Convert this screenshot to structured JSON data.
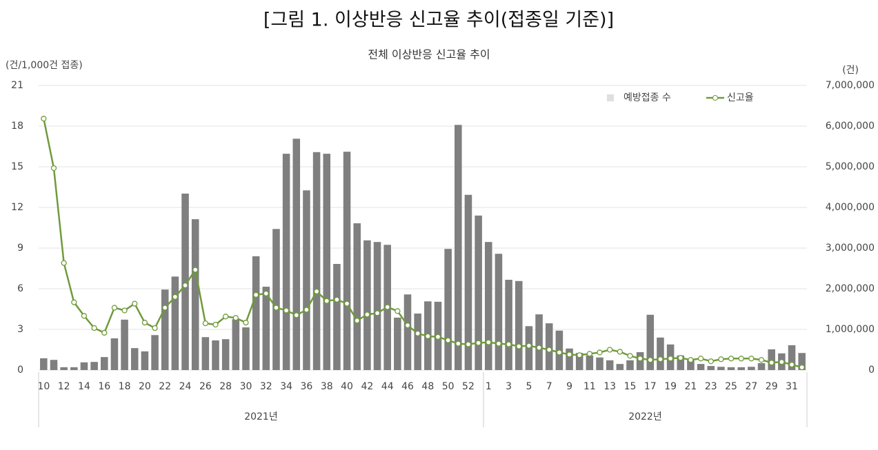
{
  "chart_data": {
    "type": "bar_line",
    "title": "[그림 1. 이상반응 신고율 추이(접종일 기준)]",
    "subtitle": "전체 이상반응 신고율 추이",
    "y_label": "(건/1,000건 접종)",
    "y2_label": "(건)",
    "categories": [
      "10",
      null,
      "12",
      null,
      "14",
      null,
      "16",
      null,
      "18",
      null,
      "20",
      null,
      "22",
      null,
      "24",
      null,
      "26",
      null,
      "28",
      null,
      "30",
      null,
      "32",
      null,
      "34",
      null,
      "36",
      null,
      "38",
      null,
      "40",
      null,
      "42",
      null,
      "44",
      null,
      "46",
      null,
      "48",
      null,
      "50",
      null,
      "52",
      null,
      "1",
      null,
      "3",
      null,
      "5",
      null,
      "7",
      null,
      "9",
      null,
      "11",
      null,
      "13",
      null,
      "15",
      null,
      "17",
      null,
      "19",
      null,
      "21",
      null,
      "23",
      null,
      "25",
      null,
      "27",
      null,
      "29",
      null,
      "31",
      null
    ],
    "groups": [
      "2021년",
      "2022년"
    ],
    "series": [
      {
        "name": "예방접종 수",
        "kind": "bar",
        "axis": "y2",
        "color": "#7f7f7f",
        "values": [
          290000,
          250000,
          70000,
          70000,
          190000,
          200000,
          320000,
          780000,
          1240000,
          540000,
          460000,
          860000,
          1980000,
          2300000,
          4340000,
          3710000,
          810000,
          730000,
          760000,
          1250000,
          1050000,
          2800000,
          2050000,
          3470000,
          5320000,
          5690000,
          4420000,
          5360000,
          5320000,
          2610000,
          5370000,
          3610000,
          3190000,
          3150000,
          3080000,
          1290000,
          1860000,
          1390000,
          1690000,
          1680000,
          2980000,
          6030000,
          4310000,
          3800000,
          3150000,
          2860000,
          2220000,
          2190000,
          1080000,
          1370000,
          1150000,
          970000,
          530000,
          420000,
          360000,
          310000,
          240000,
          150000,
          240000,
          440000,
          1360000,
          800000,
          630000,
          360000,
          270000,
          150000,
          100000,
          80000,
          70000,
          70000,
          80000,
          170000,
          510000,
          410000,
          610000,
          420000
        ]
      },
      {
        "name": "신고율",
        "kind": "line",
        "axis": "y",
        "color": "#6f9a3a",
        "values": [
          18.55,
          14.9,
          7.9,
          5.0,
          4.0,
          3.1,
          2.75,
          4.6,
          4.4,
          4.9,
          3.5,
          3.1,
          4.6,
          5.4,
          6.25,
          7.4,
          3.45,
          3.35,
          3.95,
          3.85,
          3.5,
          5.55,
          5.65,
          4.6,
          4.4,
          4.05,
          4.45,
          5.8,
          5.1,
          5.2,
          4.9,
          3.65,
          4.1,
          4.2,
          4.65,
          4.35,
          3.3,
          2.7,
          2.5,
          2.45,
          2.2,
          1.95,
          1.9,
          2.0,
          2.05,
          1.95,
          1.9,
          1.75,
          1.8,
          1.65,
          1.5,
          1.3,
          1.15,
          1.1,
          1.2,
          1.3,
          1.5,
          1.35,
          1.05,
          0.85,
          0.75,
          0.8,
          0.85,
          0.9,
          0.75,
          0.85,
          0.65,
          0.8,
          0.85,
          0.85,
          0.85,
          0.75,
          0.55,
          0.6,
          0.4,
          0.2
        ]
      }
    ],
    "ylim": [
      0,
      21
    ],
    "yticks": [
      0,
      3,
      6,
      9,
      12,
      15,
      18,
      21
    ],
    "y2lim": [
      0,
      7000000
    ],
    "y2ticks": [
      0,
      {
        "value": 1000000,
        "label": "1,000,000"
      },
      {
        "value": 2000000,
        "label": "2,000,000"
      },
      {
        "value": 3000000,
        "label": "3,000,000"
      },
      {
        "value": 4000000,
        "label": "4,000,000"
      },
      {
        "value": 5000000,
        "label": "5,000,000"
      },
      {
        "value": 6000000,
        "label": "6,000,000"
      },
      {
        "value": 7000000,
        "label": "7,000,000"
      }
    ],
    "grid": true,
    "legend": "upper right"
  }
}
